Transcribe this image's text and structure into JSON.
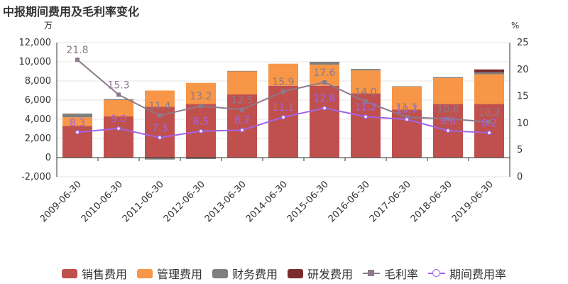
{
  "chart_data": {
    "title": "中报期间费用及毛利率变化",
    "type": "bar",
    "categories": [
      "2009-06-30",
      "2010-06-30",
      "2011-06-30",
      "2012-06-30",
      "2013-06-30",
      "2014-06-30",
      "2015-06-30",
      "2016-06-30",
      "2017-06-30",
      "2018-06-30",
      "2019-06-30"
    ],
    "y_left": {
      "unit": "万",
      "min": -2000,
      "max": 12000,
      "ticks": [
        -2000,
        0,
        2000,
        4000,
        6000,
        8000,
        10000,
        12000
      ],
      "tick_labels": [
        "-2,000",
        "0",
        "2,000",
        "4,000",
        "6,000",
        "8,000",
        "10,000",
        "12,000"
      ]
    },
    "y_right": {
      "unit": "%",
      "min": 0,
      "max": 25,
      "ticks": [
        0,
        5,
        10,
        15,
        20,
        25
      ],
      "tick_labels": [
        "0",
        "5",
        "10",
        "15",
        "20",
        "25"
      ]
    },
    "bar_series": [
      {
        "name": "销售费用",
        "color": "#c0504d",
        "values": [
          3300,
          4300,
          5300,
          5600,
          6600,
          7500,
          7500,
          6700,
          5000,
          5600,
          5600
        ]
      },
      {
        "name": "管理费用",
        "color": "#f79646",
        "values": [
          900,
          1700,
          1700,
          2200,
          2400,
          2300,
          2200,
          2400,
          2400,
          2700,
          3100
        ]
      },
      {
        "name": "财务费用",
        "color": "#7f7f7f",
        "values": [
          400,
          100,
          -200,
          -150,
          50,
          0,
          300,
          150,
          50,
          100,
          200
        ]
      },
      {
        "name": "研发费用",
        "color": "#7b2c2c",
        "values": [
          0,
          0,
          0,
          0,
          0,
          0,
          0,
          0,
          0,
          0,
          300
        ]
      }
    ],
    "line_series": [
      {
        "name": "毛利率",
        "color": "#8c7a8c",
        "marker": "square",
        "values": [
          21.8,
          15.3,
          11.4,
          13.2,
          12.5,
          15.9,
          17.6,
          14.0,
          11.1,
          10.8,
          10.2
        ],
        "labels": [
          "21.8",
          "15.3",
          "11.4",
          "13.2",
          "12.5",
          "15.9",
          "17.6",
          "14.0",
          "11.1",
          "10.8",
          "10.2"
        ]
      },
      {
        "name": "期间费用率",
        "color": "#a064e6",
        "marker": "circle",
        "values": [
          8.3,
          9.0,
          7.3,
          8.5,
          8.7,
          11.1,
          12.8,
          11.2,
          10.7,
          8.6,
          8.2
        ],
        "labels": [
          "8.3",
          "9.0",
          "7.3",
          "8.5",
          "8.7",
          "11.1",
          "12.8",
          "11.2",
          "10.7",
          "8.6",
          "8.2"
        ]
      }
    ],
    "legend": {
      "position": "bottom"
    },
    "grid": true
  }
}
